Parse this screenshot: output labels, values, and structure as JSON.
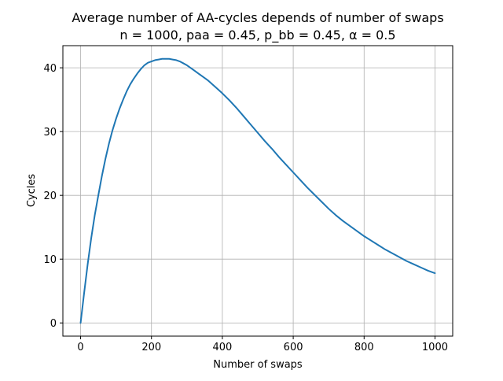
{
  "chart_data": {
    "type": "line",
    "title_lines": [
      "Average number of AA-cycles depends of number of swaps",
      "n = 1000, paa = 0.45, p_bb = 0.45, α = 0.5"
    ],
    "xlabel": "Number of swaps",
    "ylabel": "Cycles",
    "xlim": [
      -50,
      1050
    ],
    "ylim": [
      -2.07,
      43.47
    ],
    "xticks": [
      0,
      200,
      400,
      600,
      800,
      1000
    ],
    "yticks": [
      0,
      10,
      20,
      30,
      40
    ],
    "grid": true,
    "line_color": "#1f77b4",
    "series": [
      {
        "x": [
          0,
          10,
          20,
          30,
          40,
          50,
          60,
          70,
          80,
          90,
          100,
          110,
          120,
          130,
          140,
          150,
          160,
          170,
          180,
          190,
          200,
          210,
          220,
          230,
          240,
          250,
          260,
          270,
          280,
          290,
          300,
          320,
          340,
          360,
          380,
          400,
          420,
          440,
          460,
          480,
          500,
          520,
          540,
          560,
          580,
          600,
          620,
          640,
          660,
          680,
          700,
          720,
          740,
          760,
          780,
          800,
          820,
          840,
          860,
          880,
          900,
          920,
          940,
          960,
          980,
          1000
        ],
        "y": [
          0.0,
          4.7,
          9.2,
          13.3,
          16.9,
          20.0,
          23.0,
          25.7,
          28.1,
          30.2,
          32.0,
          33.6,
          35.0,
          36.3,
          37.4,
          38.3,
          39.1,
          39.8,
          40.4,
          40.8,
          41.0,
          41.2,
          41.3,
          41.4,
          41.4,
          41.4,
          41.3,
          41.2,
          41.0,
          40.7,
          40.4,
          39.6,
          38.8,
          38.0,
          37.0,
          36.0,
          34.9,
          33.7,
          32.4,
          31.1,
          29.8,
          28.5,
          27.3,
          26.0,
          24.8,
          23.6,
          22.4,
          21.2,
          20.1,
          19.0,
          17.9,
          16.9,
          16.0,
          15.2,
          14.4,
          13.6,
          12.9,
          12.2,
          11.5,
          10.9,
          10.3,
          9.7,
          9.2,
          8.7,
          8.2,
          7.8
        ]
      }
    ]
  }
}
